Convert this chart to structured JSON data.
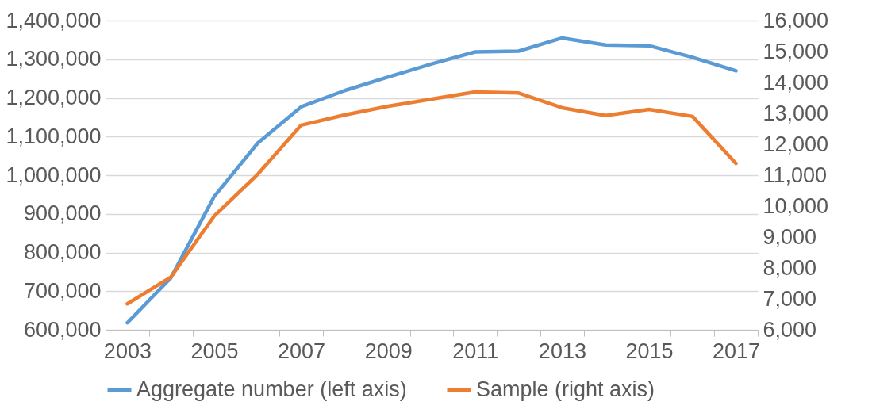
{
  "chart_data": {
    "type": "line",
    "categories": [
      "2003",
      null,
      "2005",
      null,
      "2007",
      null,
      "2009",
      null,
      "2011",
      null,
      "2013",
      null,
      "2015",
      null,
      "2017"
    ],
    "series": [
      {
        "name": "Aggregate number (left axis)",
        "color": "#5b9bd5",
        "values": [
          618000,
          734000,
          945000,
          1083000,
          1177000,
          1219000,
          1254000,
          1288000,
          1319000,
          1321000,
          1355000,
          1337000,
          1335000,
          1305000,
          1270000
        ]
      },
      {
        "name": "Sample (right axis)",
        "color": "#ed7d31",
        "axis": "y2",
        "values": [
          6840,
          7700,
          9680,
          11030,
          12620,
          12950,
          13230,
          13460,
          13690,
          13660,
          13180,
          12930,
          13130,
          12900,
          11380
        ]
      }
    ],
    "ylim": [
      600000,
      1400000
    ],
    "yticks": [
      {
        "value": 600000,
        "label": "600,000"
      },
      {
        "value": 700000,
        "label": "700,000"
      },
      {
        "value": 800000,
        "label": "800,000"
      },
      {
        "value": 900000,
        "label": "900,000"
      },
      {
        "value": 1000000,
        "label": "1,000,000"
      },
      {
        "value": 1100000,
        "label": "1,100,000"
      },
      {
        "value": 1200000,
        "label": "1,200,000"
      },
      {
        "value": 1300000,
        "label": "1,300,000"
      },
      {
        "value": 1400000,
        "label": "1,400,000"
      }
    ],
    "y2lim": [
      6000,
      16000
    ],
    "y2ticks": [
      {
        "value": 6000,
        "label": "6,000"
      },
      {
        "value": 7000,
        "label": "7,000"
      },
      {
        "value": 8000,
        "label": "8,000"
      },
      {
        "value": 9000,
        "label": "9,000"
      },
      {
        "value": 10000,
        "label": "10,000"
      },
      {
        "value": 11000,
        "label": "11,000"
      },
      {
        "value": 12000,
        "label": "12,000"
      },
      {
        "value": 13000,
        "label": "13,000"
      },
      {
        "value": 14000,
        "label": "14,000"
      },
      {
        "value": 15000,
        "label": "15,000"
      },
      {
        "value": 16000,
        "label": "16,000"
      }
    ],
    "grid": "y",
    "legend": "bottom",
    "line_style": "solid",
    "marker": "none"
  }
}
